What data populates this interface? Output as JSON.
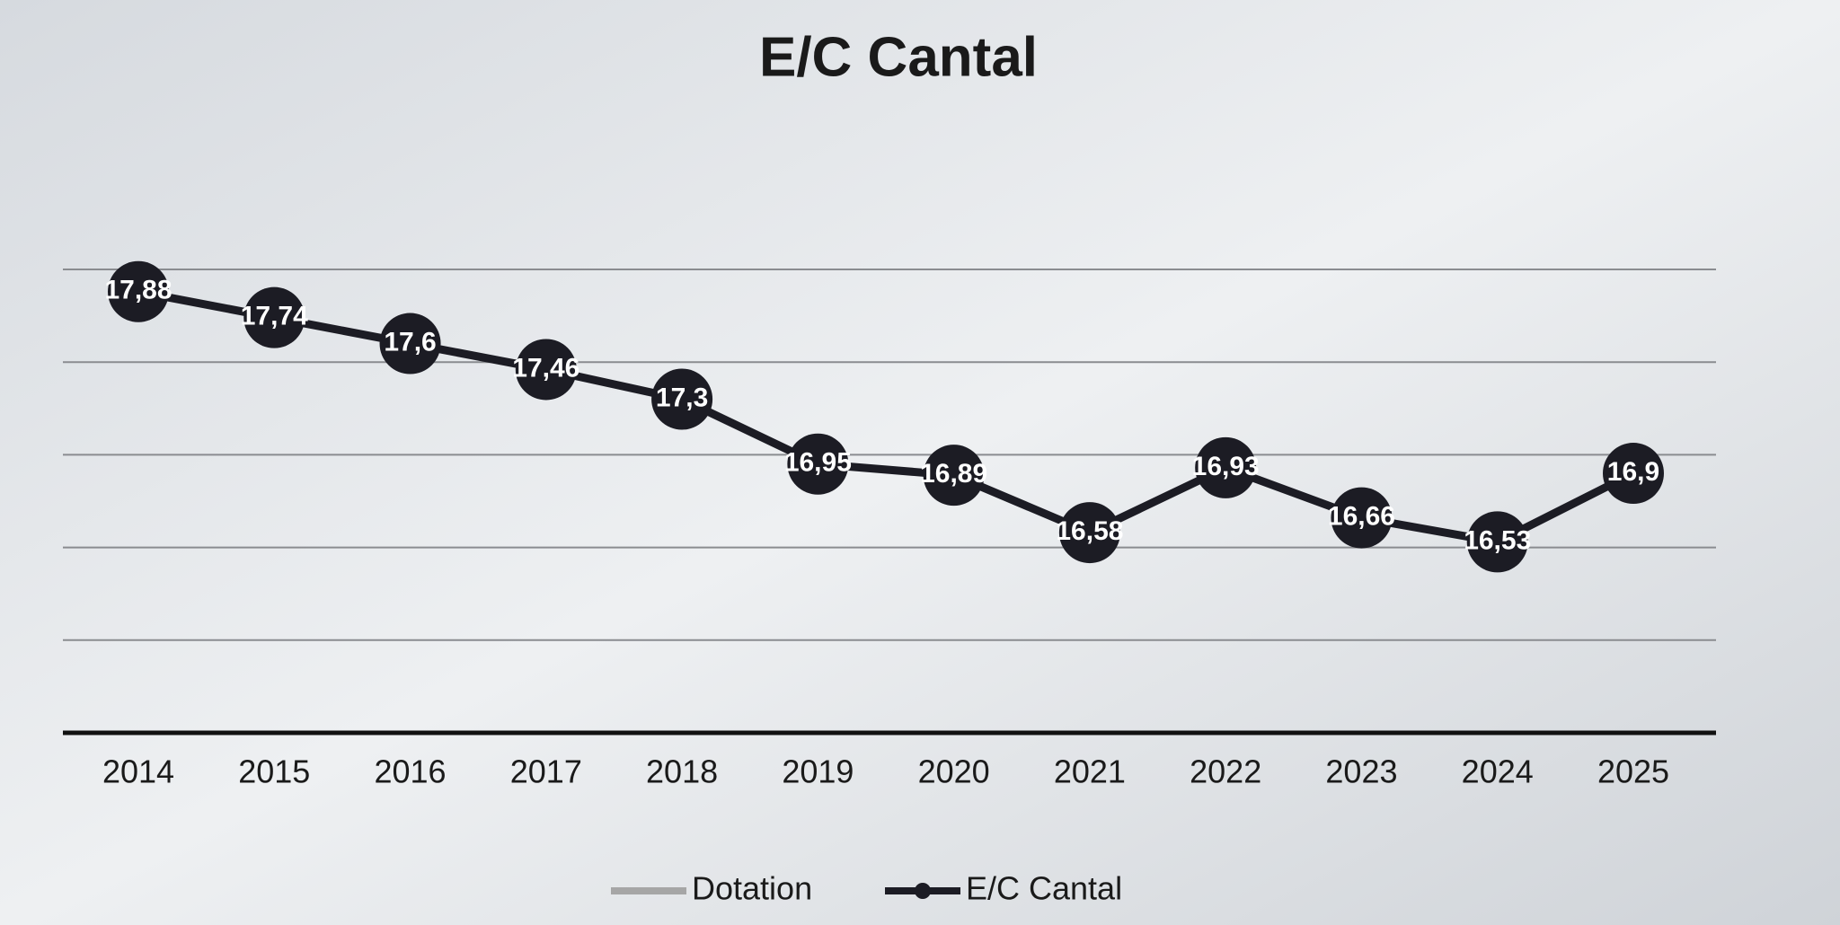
{
  "chart_data": {
    "type": "line",
    "title": "E/C Cantal",
    "categories": [
      "2014",
      "2015",
      "2016",
      "2017",
      "2018",
      "2019",
      "2020",
      "2021",
      "2022",
      "2023",
      "2024",
      "2025"
    ],
    "series": [
      {
        "name": "Dotation",
        "color": "#a6a6a6",
        "values": [
          null,
          null,
          null,
          null,
          null,
          null,
          null,
          null,
          null,
          null,
          null,
          null
        ]
      },
      {
        "name": "E/C Cantal",
        "color": "#1c1c24",
        "values": [
          17.88,
          17.74,
          17.6,
          17.46,
          17.3,
          16.95,
          16.89,
          16.58,
          16.93,
          16.66,
          16.53,
          16.9
        ],
        "value_labels": [
          "17,88",
          "17,74",
          "17,6",
          "17,46",
          "17,3",
          "16,95",
          "16,89",
          "16,58",
          "16,93",
          "16,66",
          "16,53",
          "16,9"
        ]
      }
    ],
    "ylim": [
      15.5,
      18
    ],
    "yticks": [
      15.5,
      16,
      16.5,
      17,
      17.5,
      18
    ],
    "grid": true,
    "legend": "bottom"
  }
}
